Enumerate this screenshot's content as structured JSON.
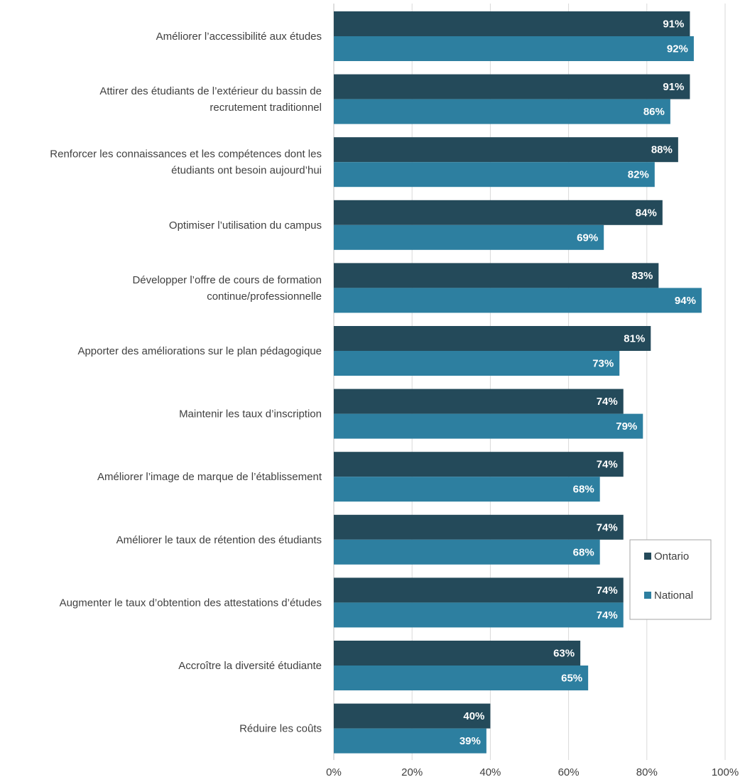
{
  "chart_data": {
    "type": "bar",
    "orientation": "horizontal",
    "categories": [
      [
        "Améliorer l’accessibilité aux études"
      ],
      [
        "Attirer des étudiants de l’extérieur du bassin de",
        "recrutement traditionnel"
      ],
      [
        "Renforcer les connaissances et les compétences dont les",
        "étudiants ont besoin aujourd’hui"
      ],
      [
        "Optimiser l’utilisation du campus"
      ],
      [
        "Développer l’offre de cours de formation",
        "continue/professionnelle"
      ],
      [
        "Apporter des améliorations sur le plan pédagogique"
      ],
      [
        "Maintenir les taux d’inscription"
      ],
      [
        "Améliorer l’image de marque de l’établissement"
      ],
      [
        "Améliorer le taux de rétention des étudiants"
      ],
      [
        "Augmenter le taux d’obtention des attestations d’études"
      ],
      [
        "Accroître la diversité étudiante"
      ],
      [
        "Réduire les coûts"
      ]
    ],
    "series": [
      {
        "name": "Ontario",
        "color": "#244a5a",
        "values": [
          91,
          91,
          88,
          84,
          83,
          81,
          74,
          74,
          74,
          74,
          63,
          40
        ],
        "labels": [
          "91%",
          "91%",
          "88%",
          "84%",
          "83%",
          "81%",
          "74%",
          "74%",
          "74%",
          "74%",
          "63%",
          "40%"
        ]
      },
      {
        "name": "National",
        "color": "#2d7fa0",
        "values": [
          92,
          86,
          82,
          69,
          94,
          73,
          79,
          68,
          68,
          74,
          65,
          39
        ],
        "labels": [
          "92%",
          "86%",
          "82%",
          "69%",
          "94%",
          "73%",
          "79%",
          "68%",
          "68%",
          "74%",
          "65%",
          "39%"
        ]
      }
    ],
    "xlim": [
      0,
      100
    ],
    "x_ticks": [
      "0%",
      "20%",
      "40%",
      "60%",
      "80%",
      "100%"
    ],
    "grid": true,
    "legend_position": "right"
  }
}
